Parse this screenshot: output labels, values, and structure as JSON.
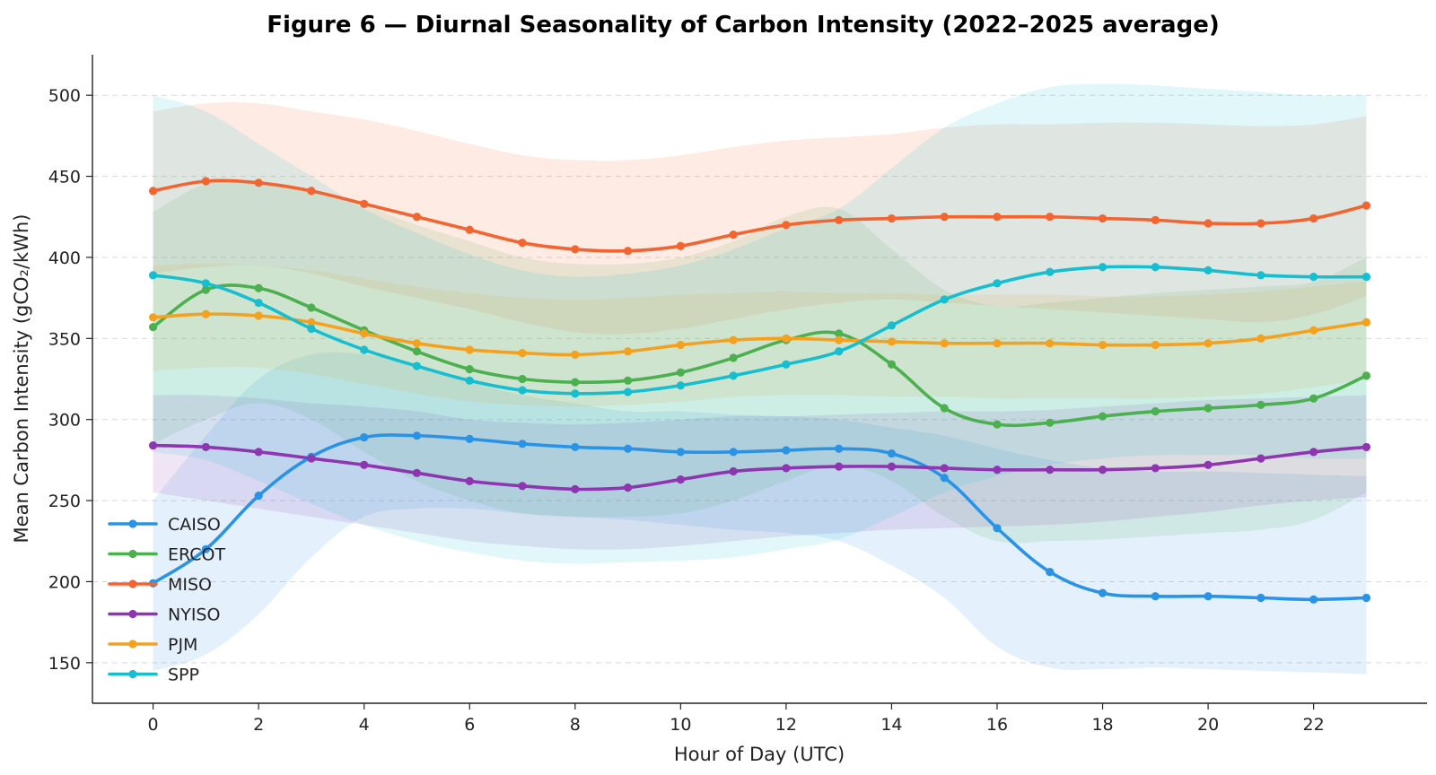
{
  "chart_data": {
    "type": "line",
    "title": "Figure 6 — Diurnal Seasonality of Carbon Intensity (2022–2025 average)",
    "xlabel": "Hour of Day (UTC)",
    "ylabel": "Mean Carbon Intensity (gCO₂/kWh)",
    "x": [
      0,
      1,
      2,
      3,
      4,
      5,
      6,
      7,
      8,
      9,
      10,
      11,
      12,
      13,
      14,
      15,
      16,
      17,
      18,
      19,
      20,
      21,
      22,
      23
    ],
    "xlim": [
      -1.15,
      24.15
    ],
    "ylim": [
      125,
      525
    ],
    "xticks": [
      0,
      2,
      4,
      6,
      8,
      10,
      12,
      14,
      16,
      18,
      20,
      22
    ],
    "yticks": [
      150,
      200,
      250,
      300,
      350,
      400,
      450,
      500
    ],
    "grid": "y-dashed",
    "legend": "lower-left",
    "series": [
      {
        "name": "CAISO",
        "color": "#2b93e6",
        "values": [
          199,
          220,
          253,
          277,
          289,
          290,
          288,
          285,
          283,
          282,
          280,
          280,
          281,
          282,
          279,
          264,
          233,
          206,
          193,
          191,
          191,
          190,
          189,
          190
        ],
        "band_upper": [
          250,
          290,
          325,
          340,
          340,
          333,
          323,
          315,
          310,
          305,
          305,
          303,
          302,
          300,
          295,
          290,
          282,
          275,
          270,
          268,
          268,
          267,
          266,
          265
        ],
        "band_lower": [
          145,
          155,
          180,
          215,
          240,
          245,
          245,
          242,
          240,
          238,
          235,
          232,
          230,
          225,
          210,
          190,
          160,
          147,
          146,
          147,
          146,
          145,
          144,
          143
        ]
      },
      {
        "name": "ERCOT",
        "color": "#4caf50",
        "values": [
          357,
          380,
          381,
          369,
          355,
          342,
          331,
          325,
          323,
          324,
          329,
          338,
          349,
          353,
          334,
          307,
          297,
          298,
          302,
          305,
          307,
          309,
          313,
          327
        ],
        "band_upper": [
          428,
          445,
          445,
          440,
          432,
          420,
          410,
          400,
          396,
          396,
          400,
          410,
          425,
          430,
          405,
          380,
          370,
          372,
          375,
          378,
          380,
          382,
          385,
          400
        ],
        "band_lower": [
          285,
          300,
          310,
          300,
          280,
          262,
          250,
          242,
          240,
          240,
          242,
          250,
          262,
          272,
          262,
          240,
          225,
          225,
          226,
          228,
          230,
          232,
          238,
          255
        ]
      },
      {
        "name": "MISO",
        "color": "#f26430",
        "values": [
          441,
          447,
          446,
          441,
          433,
          425,
          417,
          409,
          405,
          404,
          407,
          414,
          420,
          423,
          424,
          425,
          425,
          425,
          424,
          423,
          421,
          421,
          424,
          432
        ],
        "band_upper": [
          490,
          495,
          495,
          490,
          485,
          478,
          470,
          463,
          460,
          460,
          463,
          468,
          472,
          474,
          476,
          480,
          482,
          482,
          483,
          483,
          482,
          481,
          482,
          487
        ],
        "band_lower": [
          390,
          394,
          395,
          390,
          382,
          375,
          368,
          360,
          354,
          353,
          356,
          362,
          368,
          372,
          374,
          372,
          370,
          368,
          366,
          364,
          362,
          360,
          365,
          376
        ]
      },
      {
        "name": "NYISO",
        "color": "#8e35b0",
        "values": [
          284,
          283,
          280,
          276,
          272,
          267,
          262,
          259,
          257,
          258,
          263,
          268,
          270,
          271,
          271,
          270,
          269,
          269,
          269,
          270,
          272,
          276,
          280,
          283
        ],
        "band_upper": [
          315,
          315,
          313,
          310,
          308,
          305,
          300,
          298,
          297,
          298,
          300,
          302,
          302,
          303,
          304,
          305,
          305,
          306,
          308,
          310,
          312,
          313,
          314,
          315
        ],
        "band_lower": [
          255,
          250,
          245,
          240,
          235,
          230,
          225,
          222,
          220,
          220,
          222,
          225,
          228,
          230,
          232,
          233,
          234,
          235,
          237,
          240,
          243,
          247,
          250,
          252
        ]
      },
      {
        "name": "PJM",
        "color": "#f4a11f",
        "values": [
          363,
          365,
          364,
          360,
          353,
          347,
          343,
          341,
          340,
          342,
          346,
          349,
          350,
          349,
          348,
          347,
          347,
          347,
          346,
          346,
          347,
          350,
          355,
          360
        ],
        "band_upper": [
          395,
          396,
          395,
          392,
          387,
          382,
          378,
          375,
          374,
          375,
          377,
          378,
          379,
          378,
          378,
          377,
          377,
          377,
          376,
          376,
          377,
          379,
          382,
          385
        ],
        "band_lower": [
          330,
          332,
          332,
          328,
          322,
          316,
          311,
          309,
          308,
          309,
          311,
          314,
          315,
          315,
          314,
          314,
          313,
          313,
          313,
          313,
          314,
          316,
          320,
          325
        ]
      },
      {
        "name": "SPP",
        "color": "#17becf",
        "values": [
          389,
          384,
          372,
          356,
          343,
          333,
          324,
          318,
          316,
          317,
          321,
          327,
          334,
          342,
          358,
          374,
          384,
          391,
          394,
          394,
          392,
          389,
          388,
          388
        ],
        "band_upper": [
          500,
          490,
          470,
          450,
          430,
          415,
          402,
          392,
          388,
          390,
          395,
          405,
          418,
          430,
          455,
          480,
          495,
          505,
          507,
          506,
          504,
          502,
          500,
          500
        ],
        "band_lower": [
          280,
          275,
          262,
          248,
          235,
          225,
          218,
          213,
          211,
          212,
          213,
          215,
          220,
          226,
          240,
          255,
          265,
          272,
          276,
          278,
          278,
          278,
          276,
          276
        ]
      }
    ]
  }
}
